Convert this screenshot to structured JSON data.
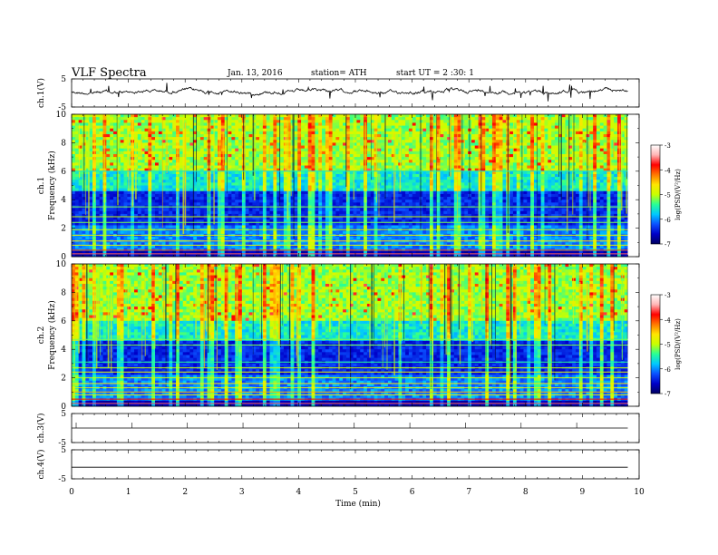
{
  "header": {
    "title": "VLF  Spectra",
    "date": "Jan. 13, 2016",
    "station": "station= ATH",
    "start": "start  UT =   2  :30: 1"
  },
  "colors": {
    "colormap": [
      "#000060",
      "#0000c8",
      "#0a50ff",
      "#00c8ff",
      "#28ff96",
      "#c8ff00",
      "#ffe600",
      "#ff7800",
      "#ff0000",
      "#ffb4b4",
      "#ffffff"
    ]
  },
  "chart_data": [
    {
      "id": "ch1-waveform",
      "type": "line",
      "ylabel": "ch.1(V)",
      "ylim": [
        -5,
        5
      ],
      "yticks": [
        "5",
        "-5"
      ],
      "xlim": [
        0,
        10
      ],
      "baseline_v": 0.5
    },
    {
      "id": "ch1-spectrogram",
      "type": "heatmap",
      "ylabel": "ch.1\nFrequency (kHz)",
      "ylim": [
        0,
        10
      ],
      "yticks": [
        "0",
        "2",
        "4",
        "6",
        "8",
        "10"
      ],
      "xlim": [
        0,
        10
      ],
      "colorbar": {
        "label": "log(PSD/(V²/Hz)",
        "ticks": [
          "-3",
          "-4",
          "-5",
          "-6",
          "-7"
        ],
        "range": [
          -7,
          -3
        ]
      }
    },
    {
      "id": "ch2-spectrogram",
      "type": "heatmap",
      "ylabel": "ch.2\nFrequency (kHz)",
      "ylim": [
        0,
        10
      ],
      "yticks": [
        "0",
        "2",
        "4",
        "6",
        "8",
        "10"
      ],
      "xlim": [
        0,
        10
      ],
      "colorbar": {
        "label": "log(PSD/(V²/Hz)",
        "ticks": [
          "-3",
          "-4",
          "-5",
          "-6",
          "-7"
        ],
        "range": [
          -7,
          -3
        ]
      }
    },
    {
      "id": "ch3-waveform",
      "type": "line",
      "ylabel": "ch.3(V)",
      "ylim": [
        -5,
        5
      ],
      "yticks": [
        "5",
        "-5"
      ],
      "xlim": [
        0,
        10
      ],
      "baseline_v": 0
    },
    {
      "id": "ch4-waveform",
      "type": "line",
      "ylabel": "ch.4(V)",
      "ylim": [
        -5,
        5
      ],
      "yticks": [
        "5",
        "-5"
      ],
      "xlim": [
        0,
        10
      ],
      "baseline_v": -1
    }
  ],
  "x_axis": {
    "label": "Time  (min)",
    "ticks": [
      "0",
      "1",
      "2",
      "3",
      "4",
      "5",
      "6",
      "7",
      "8",
      "9",
      "10"
    ],
    "range": [
      0,
      10
    ],
    "data_end": 9.8
  }
}
